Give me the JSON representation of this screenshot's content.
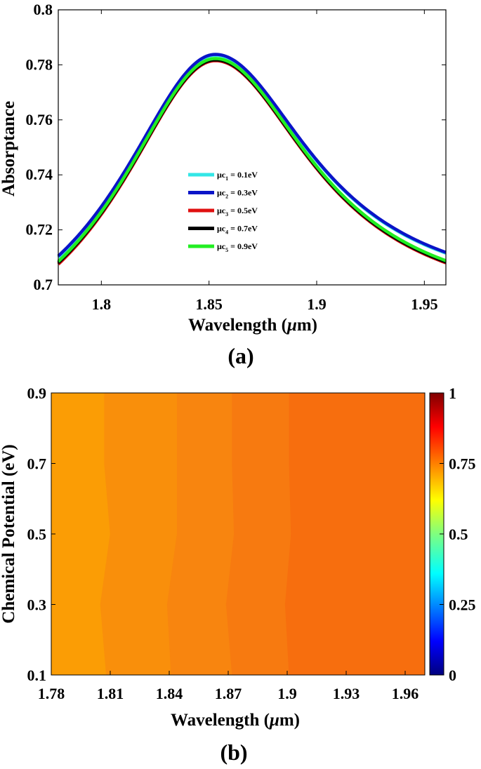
{
  "chart_data": [
    {
      "type": "line",
      "panel_label": "(a)",
      "xlabel_main": "Wavelength (",
      "xlabel_mu": "μ",
      "xlabel_unit": "m)",
      "ylabel": "Absorptance",
      "xlim": [
        1.78,
        1.96
      ],
      "ylim": [
        0.7,
        0.8
      ],
      "x_ticks": [
        "1.8",
        "1.85",
        "1.9",
        "1.95"
      ],
      "y_ticks": [
        "0.7",
        "0.72",
        "0.74",
        "0.76",
        "0.78",
        "0.8"
      ],
      "peak_wavelength": 1.853,
      "series": [
        {
          "prefix": "μc",
          "sub": "1",
          "value_text": " = 0.1eV",
          "color": "#33e6e6",
          "start": 0.71,
          "peak": 0.7835,
          "end": 0.7115
        },
        {
          "prefix": "μc",
          "sub": "2",
          "value_text": " = 0.3eV",
          "color": "#0a14c8",
          "start": 0.7105,
          "peak": 0.7838,
          "end": 0.7118
        },
        {
          "prefix": "μc",
          "sub": "3",
          "value_text": " = 0.5eV",
          "color": "#e01010",
          "start": 0.7075,
          "peak": 0.7815,
          "end": 0.708
        },
        {
          "prefix": "μc",
          "sub": "4",
          "value_text": " = 0.7eV",
          "color": "#000000",
          "start": 0.708,
          "peak": 0.7818,
          "end": 0.7083
        },
        {
          "prefix": "μc",
          "sub": "5",
          "value_text": " = 0.9eV",
          "color": "#22ee22",
          "start": 0.7085,
          "peak": 0.7823,
          "end": 0.7088
        }
      ],
      "legend_position": "center"
    },
    {
      "type": "heatmap",
      "panel_label": "(b)",
      "xlabel_main": "Wavelength (",
      "xlabel_mu": "μ",
      "xlabel_unit": "m)",
      "ylabel": "Chemical Potential (eV)",
      "xlim": [
        1.78,
        1.97
      ],
      "ylim": [
        0.1,
        0.9
      ],
      "x_ticks": [
        "1.78",
        "1.81",
        "1.84",
        "1.87",
        "1.9",
        "1.93",
        "1.96"
      ],
      "y_ticks": [
        "0.1",
        "0.3",
        "0.5",
        "0.7",
        "0.9"
      ],
      "y_values": [
        0.1,
        0.3,
        0.5,
        0.7,
        0.9
      ],
      "band_colors": [
        "#fb9d05",
        "#f98f0b",
        "#f8850f",
        "#f77a10",
        "#f76e0e"
      ],
      "band_boundaries": [
        [
          1.808,
          1.805,
          1.81,
          1.807,
          1.807
        ],
        [
          1.841,
          1.839,
          1.844,
          1.844,
          1.844
        ],
        [
          1.872,
          1.869,
          1.873,
          1.872,
          1.872
        ],
        [
          1.901,
          1.899,
          1.902,
          1.901,
          1.901
        ]
      ],
      "colorbar_ticks": [
        "0",
        "0.25",
        "0.5",
        "0.75",
        "1"
      ],
      "colorbar_range": [
        0,
        1
      ],
      "colormap": "jet"
    }
  ]
}
